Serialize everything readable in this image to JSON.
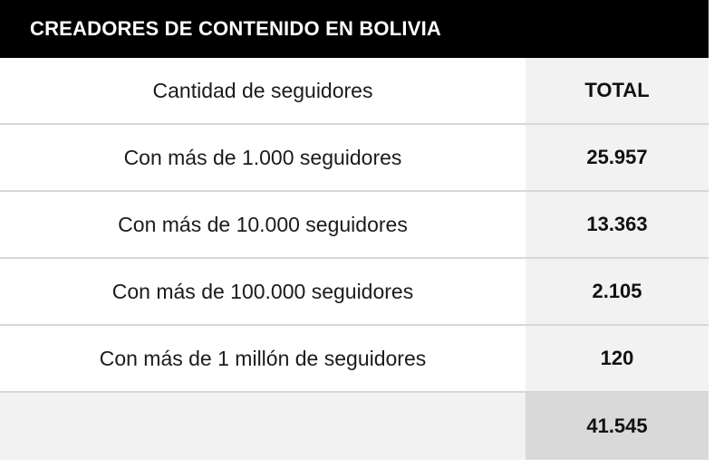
{
  "title": "CREADORES DE CONTENIDO EN BOLIVIA",
  "header": {
    "label": "Cantidad de seguidores",
    "value": "TOTAL"
  },
  "rows": [
    {
      "label": "Con más de 1.000 seguidores",
      "value": "25.957"
    },
    {
      "label": "Con más de 10.000 seguidores",
      "value": "13.363"
    },
    {
      "label": "Con más de 100.000 seguidores",
      "value": "2.105"
    },
    {
      "label": "Con más de 1 millón de seguidores",
      "value": "120"
    }
  ],
  "total": {
    "label": "",
    "value": "41.545"
  },
  "colors": {
    "title_bg": "#000000",
    "title_text": "#ffffff",
    "value_column_bg": "#f2f2f2",
    "total_value_bg": "#d9d9d9",
    "row_separator": "#d7d7d7"
  }
}
